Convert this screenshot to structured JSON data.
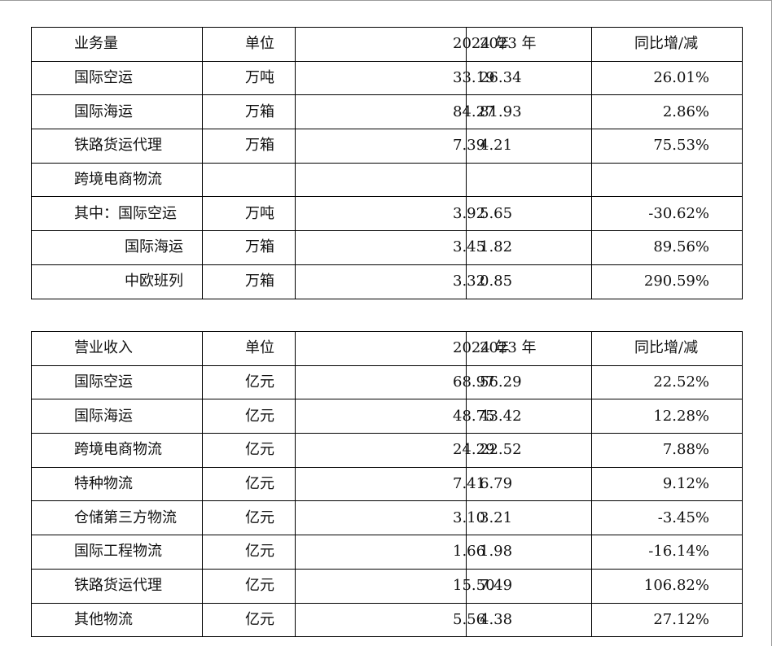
{
  "volume_table": {
    "headers": [
      "业务量",
      "单位",
      "2024 年",
      "2023 年",
      "同比增/减"
    ],
    "rows": [
      {
        "name": "国际空运",
        "unit": "万吨",
        "y2024": "33.19",
        "y2023": "26.34",
        "yoy": "26.01%"
      },
      {
        "name": "国际海运",
        "unit": "万箱",
        "y2024": "84.27",
        "y2023": "81.93",
        "yoy": "2.86%"
      },
      {
        "name": "铁路货运代理",
        "unit": "万箱",
        "y2024": "7.39",
        "y2023": "4.21",
        "yoy": "75.53%"
      },
      {
        "name": "跨境电商物流",
        "unit": "",
        "y2024": "",
        "y2023": "",
        "yoy": ""
      },
      {
        "name": "其中：国际空运",
        "unit": "万吨",
        "y2024": "3.92",
        "y2023": "5.65",
        "yoy": "-30.62%"
      },
      {
        "name": "国际海运",
        "unit": "万箱",
        "y2024": "3.45",
        "y2023": "1.82",
        "yoy": "89.56%"
      },
      {
        "name": "中欧班列",
        "unit": "万箱",
        "y2024": "3.32",
        "y2023": "0.85",
        "yoy": "290.59%"
      }
    ]
  },
  "revenue_table": {
    "headers": [
      "营业收入",
      "单位",
      "2024 年",
      "2023 年",
      "同比增/减"
    ],
    "rows": [
      {
        "name": "国际空运",
        "unit": "亿元",
        "y2024": "68.97",
        "y2023": "56.29",
        "yoy": "22.52%"
      },
      {
        "name": "国际海运",
        "unit": "亿元",
        "y2024": "48.75",
        "y2023": "43.42",
        "yoy": "12.28%"
      },
      {
        "name": "跨境电商物流",
        "unit": "亿元",
        "y2024": "24.29",
        "y2023": "22.52",
        "yoy": "7.88%"
      },
      {
        "name": "特种物流",
        "unit": "亿元",
        "y2024": "7.41",
        "y2023": "6.79",
        "yoy": "9.12%"
      },
      {
        "name": "仓储第三方物流",
        "unit": "亿元",
        "y2024": "3.10",
        "y2023": "3.21",
        "yoy": "-3.45%"
      },
      {
        "name": "国际工程物流",
        "unit": "亿元",
        "y2024": "1.66",
        "y2023": "1.98",
        "yoy": "-16.14%"
      },
      {
        "name": "铁路货运代理",
        "unit": "亿元",
        "y2024": "15.50",
        "y2023": "7.49",
        "yoy": "106.82%"
      },
      {
        "name": "其他物流",
        "unit": "亿元",
        "y2024": "5.56",
        "y2023": "4.38",
        "yoy": "27.12%"
      }
    ]
  }
}
